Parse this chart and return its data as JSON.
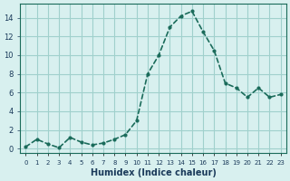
{
  "x": [
    0,
    1,
    2,
    3,
    4,
    5,
    6,
    7,
    8,
    9,
    10,
    11,
    12,
    13,
    14,
    15,
    16,
    17,
    18,
    19,
    20,
    21,
    22,
    23
  ],
  "y": [
    0.2,
    1.0,
    0.5,
    0.1,
    1.2,
    0.7,
    0.4,
    0.6,
    1.0,
    1.5,
    3.0,
    8.0,
    10.0,
    13.0,
    14.2,
    14.7,
    12.5,
    10.5,
    7.0,
    6.5,
    5.5,
    6.5,
    5.5,
    5.8
  ],
  "line_color": "#1a6b5a",
  "marker_color": "#1a6b5a",
  "bg_color": "#d8f0ef",
  "grid_color": "#a0d0cc",
  "xlabel": "Humidex (Indice chaleur)",
  "ylabel": "",
  "title": "",
  "xlim": [
    -0.5,
    23.5
  ],
  "ylim": [
    -0.5,
    15.5
  ],
  "yticks": [
    0,
    2,
    4,
    6,
    8,
    10,
    12,
    14
  ],
  "xticks": [
    0,
    1,
    2,
    3,
    4,
    5,
    6,
    7,
    8,
    9,
    10,
    11,
    12,
    13,
    14,
    15,
    16,
    17,
    18,
    19,
    20,
    21,
    22,
    23
  ],
  "xtick_labels": [
    "0",
    "1",
    "2",
    "3",
    "4",
    "5",
    "6",
    "7",
    "8",
    "9",
    "10",
    "11",
    "12",
    "13",
    "14",
    "15",
    "16",
    "17",
    "18",
    "19",
    "20",
    "21",
    "22",
    "23"
  ],
  "font_color": "#1a3a5a",
  "axis_color": "#1a6b5a"
}
